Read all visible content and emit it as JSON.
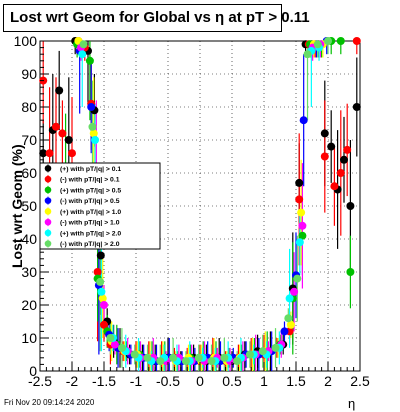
{
  "chart_data": {
    "type": "scatter",
    "title": "Lost wrt Geom for Global vs   η at pT > 0.11",
    "xlabel": "η",
    "ylabel": "Lost wrt Geom (%)",
    "xlim": [
      -2.5,
      2.5
    ],
    "ylim": [
      0,
      100
    ],
    "x_ticks": [
      "-2.5",
      "-2",
      "-1.5",
      "-1",
      "-0.5",
      "0",
      "0.5",
      "1",
      "1.5",
      "2",
      "2.5"
    ],
    "y_ticks": [
      "0",
      "10",
      "20",
      "30",
      "40",
      "50",
      "60",
      "70",
      "80",
      "90",
      "100"
    ],
    "grid": true,
    "legend_position": "left-middle",
    "series": [
      {
        "name": "(+) with pT/|q| > 0.1",
        "color": "#000000",
        "points": [
          [
            -2.45,
            66
          ],
          [
            -2.3,
            73
          ],
          [
            -2.2,
            85
          ],
          [
            -2.05,
            70
          ],
          [
            -1.95,
            100
          ],
          [
            -1.85,
            99
          ],
          [
            -1.75,
            97
          ],
          [
            -1.65,
            79
          ],
          [
            -1.55,
            35
          ],
          [
            -1.45,
            15
          ],
          [
            -1.35,
            9
          ],
          [
            -1.25,
            7
          ],
          [
            -1.1,
            5
          ],
          [
            -0.9,
            4
          ],
          [
            -0.7,
            3
          ],
          [
            -0.5,
            4
          ],
          [
            -0.3,
            3
          ],
          [
            -0.1,
            4
          ],
          [
            0.1,
            3
          ],
          [
            0.3,
            4
          ],
          [
            0.5,
            3
          ],
          [
            0.7,
            5
          ],
          [
            0.9,
            6
          ],
          [
            1.1,
            6
          ],
          [
            1.3,
            8
          ],
          [
            1.45,
            25
          ],
          [
            1.55,
            57
          ],
          [
            1.65,
            99
          ],
          [
            1.75,
            99
          ],
          [
            1.85,
            99
          ],
          [
            1.95,
            72
          ],
          [
            2.05,
            68
          ],
          [
            2.15,
            55
          ],
          [
            2.25,
            64
          ],
          [
            2.35,
            50
          ],
          [
            2.45,
            80
          ]
        ]
      },
      {
        "name": "(-) with pT/|q| > 0.1",
        "color": "#ff0000",
        "points": [
          [
            -2.45,
            88
          ],
          [
            -2.35,
            66
          ],
          [
            -2.25,
            74
          ],
          [
            -2.15,
            72
          ],
          [
            -2.0,
            66
          ],
          [
            -1.9,
            100
          ],
          [
            -1.8,
            98
          ],
          [
            -1.7,
            81
          ],
          [
            -1.6,
            30
          ],
          [
            -1.5,
            14
          ],
          [
            -1.4,
            8
          ],
          [
            -1.2,
            6
          ],
          [
            -1.0,
            5
          ],
          [
            -0.8,
            4
          ],
          [
            -0.6,
            3
          ],
          [
            -0.4,
            4
          ],
          [
            -0.2,
            3
          ],
          [
            0.0,
            3
          ],
          [
            0.2,
            4
          ],
          [
            0.4,
            3
          ],
          [
            0.6,
            4
          ],
          [
            0.8,
            5
          ],
          [
            1.0,
            5
          ],
          [
            1.2,
            7
          ],
          [
            1.4,
            12
          ],
          [
            1.55,
            52
          ],
          [
            1.7,
            99
          ],
          [
            1.8,
            99
          ],
          [
            1.95,
            65
          ],
          [
            2.1,
            56
          ],
          [
            2.2,
            60
          ],
          [
            2.3,
            67
          ],
          [
            2.45,
            100
          ]
        ]
      },
      {
        "name": "(+) with pT/|q| > 0.5",
        "color": "#00c000",
        "points": [
          [
            -2.1,
            62
          ],
          [
            -1.92,
            99
          ],
          [
            -1.72,
            94
          ],
          [
            -1.6,
            28
          ],
          [
            -1.45,
            12
          ],
          [
            -1.3,
            8
          ],
          [
            -1.15,
            6
          ],
          [
            -0.95,
            5
          ],
          [
            -0.75,
            4
          ],
          [
            -0.55,
            3
          ],
          [
            -0.35,
            3
          ],
          [
            -0.15,
            4
          ],
          [
            0.05,
            4
          ],
          [
            0.25,
            3
          ],
          [
            0.45,
            4
          ],
          [
            0.65,
            4
          ],
          [
            0.85,
            5
          ],
          [
            1.05,
            6
          ],
          [
            1.25,
            8
          ],
          [
            1.45,
            22
          ],
          [
            1.6,
            41
          ],
          [
            1.72,
            99
          ],
          [
            1.9,
            99
          ],
          [
            2.05,
            100
          ],
          [
            2.2,
            100
          ],
          [
            2.35,
            30
          ]
        ]
      },
      {
        "name": "(-) with pT/|q| > 0.5",
        "color": "#0000ff",
        "points": [
          [
            -1.88,
            97
          ],
          [
            -1.7,
            80
          ],
          [
            -1.58,
            26
          ],
          [
            -1.42,
            11
          ],
          [
            -1.28,
            7
          ],
          [
            -1.08,
            5
          ],
          [
            -0.88,
            4
          ],
          [
            -0.68,
            3
          ],
          [
            -0.48,
            4
          ],
          [
            -0.28,
            3
          ],
          [
            -0.08,
            3
          ],
          [
            0.12,
            4
          ],
          [
            0.32,
            3
          ],
          [
            0.52,
            4
          ],
          [
            0.72,
            5
          ],
          [
            0.92,
            5
          ],
          [
            1.12,
            6
          ],
          [
            1.32,
            12
          ],
          [
            1.5,
            29
          ],
          [
            1.62,
            76
          ],
          [
            1.82,
            99
          ],
          [
            1.98,
            100
          ]
        ]
      },
      {
        "name": "(+) with pT/|q| > 1.0",
        "color": "#ffff00",
        "points": [
          [
            -1.9,
            100
          ],
          [
            -1.66,
            72
          ],
          [
            -1.52,
            22
          ],
          [
            -1.38,
            9
          ],
          [
            -1.18,
            6
          ],
          [
            -0.98,
            5
          ],
          [
            -0.78,
            4
          ],
          [
            -0.58,
            3
          ],
          [
            -0.38,
            3
          ],
          [
            -0.18,
            4
          ],
          [
            0.02,
            3
          ],
          [
            0.22,
            4
          ],
          [
            0.42,
            3
          ],
          [
            0.62,
            4
          ],
          [
            0.82,
            5
          ],
          [
            1.02,
            6
          ],
          [
            1.22,
            7
          ],
          [
            1.42,
            14
          ],
          [
            1.58,
            48
          ],
          [
            1.78,
            99
          ],
          [
            1.92,
            99
          ]
        ]
      },
      {
        "name": "(-) with pT/|q| > 1.0",
        "color": "#ff00ff",
        "points": [
          [
            -1.86,
            98
          ],
          [
            -1.62,
            62
          ],
          [
            -1.5,
            20
          ],
          [
            -1.33,
            8
          ],
          [
            -1.13,
            6
          ],
          [
            -0.93,
            4
          ],
          [
            -0.73,
            4
          ],
          [
            -0.53,
            3
          ],
          [
            -0.33,
            4
          ],
          [
            -0.13,
            3
          ],
          [
            0.07,
            3
          ],
          [
            0.27,
            4
          ],
          [
            0.47,
            3
          ],
          [
            0.67,
            4
          ],
          [
            0.87,
            5
          ],
          [
            1.07,
            6
          ],
          [
            1.27,
            8
          ],
          [
            1.47,
            24
          ],
          [
            1.6,
            44
          ],
          [
            1.76,
            98
          ],
          [
            1.88,
            99
          ]
        ]
      },
      {
        "name": "(+) with pT/|q| > 2.0",
        "color": "#00ffff",
        "points": [
          [
            -1.84,
            96
          ],
          [
            -1.64,
            70
          ],
          [
            -1.54,
            24
          ],
          [
            -1.36,
            10
          ],
          [
            -1.16,
            6
          ],
          [
            -0.96,
            4
          ],
          [
            -0.76,
            3
          ],
          [
            -0.56,
            4
          ],
          [
            -0.36,
            3
          ],
          [
            -0.16,
            3
          ],
          [
            0.04,
            4
          ],
          [
            0.24,
            3
          ],
          [
            0.44,
            4
          ],
          [
            0.64,
            4
          ],
          [
            0.84,
            5
          ],
          [
            1.04,
            5
          ],
          [
            1.24,
            7
          ],
          [
            1.4,
            22
          ],
          [
            1.56,
            39
          ],
          [
            1.74,
            97
          ],
          [
            1.86,
            98
          ]
        ]
      },
      {
        "name": "(-) with pT/|q| > 2.0",
        "color": "#66dd66",
        "points": [
          [
            -1.82,
            99
          ],
          [
            -1.68,
            74
          ],
          [
            -1.56,
            27
          ],
          [
            -1.4,
            10
          ],
          [
            -1.22,
            7
          ],
          [
            -1.02,
            5
          ],
          [
            -0.82,
            4
          ],
          [
            -0.62,
            3
          ],
          [
            -0.42,
            4
          ],
          [
            -0.22,
            3
          ],
          [
            -0.02,
            4
          ],
          [
            0.18,
            3
          ],
          [
            0.38,
            4
          ],
          [
            0.58,
            3
          ],
          [
            0.78,
            5
          ],
          [
            0.98,
            6
          ],
          [
            1.18,
            7
          ],
          [
            1.38,
            16
          ],
          [
            1.52,
            28
          ],
          [
            1.68,
            96
          ],
          [
            1.84,
            99
          ],
          [
            2.0,
            100
          ]
        ]
      }
    ]
  },
  "footer": {
    "timestamp": "Fri Nov 20 09:14:24 2020"
  }
}
